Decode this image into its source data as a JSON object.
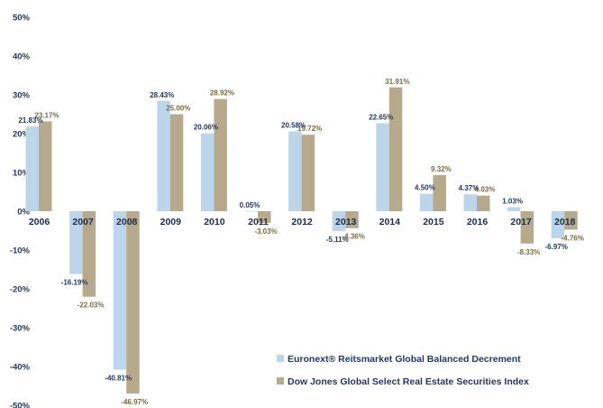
{
  "chart_data": {
    "type": "bar",
    "categories": [
      "2006",
      "2007",
      "2008",
      "2009",
      "2010",
      "2011",
      "2012",
      "2013",
      "2014",
      "2015",
      "2016",
      "2017",
      "2018"
    ],
    "series": [
      {
        "name": "Euronext® Reitsmarket Global Balanced Decrement",
        "values": [
          21.83,
          -16.19,
          -40.81,
          28.43,
          20.06,
          0.05,
          20.58,
          -5.11,
          22.65,
          4.5,
          4.37,
          1.03,
          -6.97
        ],
        "labels": [
          "21.83%",
          "-16.19%",
          "-40.81%",
          "28.43%",
          "20.06%",
          "0.05%",
          "20.58%",
          "-5.11%",
          "22.65%",
          "4.50%",
          "4.37%",
          "1.03%",
          "-6.97%"
        ],
        "color": "#bcd5ea"
      },
      {
        "name": "Dow Jones Global Select Real Estate Securities Index",
        "values": [
          23.17,
          -22.03,
          -46.97,
          25.0,
          28.92,
          -3.03,
          19.72,
          -4.36,
          31.91,
          9.32,
          4.03,
          -8.33,
          -4.76
        ],
        "labels": [
          "23.17%",
          "-22.03%",
          "-46.97%",
          "25.00%",
          "28.92%",
          "-3.03%",
          "19.72%",
          "-4.36%",
          "31.91%",
          "9.32%",
          "4.03%",
          "-8.33%",
          "-4.76%"
        ],
        "color": "#b7aa8c"
      }
    ],
    "ylim": [
      -50,
      50
    ],
    "yticks": [
      50,
      40,
      30,
      20,
      10,
      0,
      -10,
      -20,
      -30,
      -40,
      -50
    ],
    "ytick_labels": [
      "50%",
      "40%",
      "30%",
      "20%",
      "10%",
      "0%",
      "-10%",
      "-20%",
      "-30%",
      "-40%",
      "-50%"
    ],
    "grid": false,
    "legend_position": "bottom-right"
  }
}
